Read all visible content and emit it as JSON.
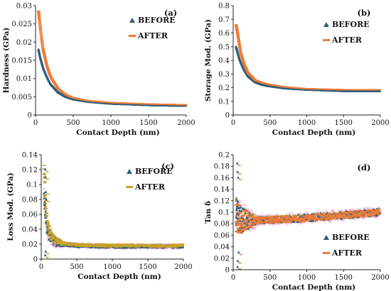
{
  "colors": {
    "before": "#2a5f7c",
    "after": "#f27a36",
    "after_c": "#c9a22a",
    "pink": "#ff9fd6",
    "green": "#8fc63d",
    "axis": "#222222"
  },
  "chart_data": [
    {
      "type": "scatter",
      "panel_label": "(a)",
      "title": "",
      "xlabel": "Contact Depth (nm)",
      "ylabel": "Hardness (GPa)",
      "xlim": [
        0,
        2000
      ],
      "ylim": [
        0,
        0.03
      ],
      "x_ticks": [
        "0",
        "500",
        "1000",
        "1500",
        "2000"
      ],
      "y_ticks": [
        "0",
        "0.005",
        "0.01",
        "0.015",
        "0.02",
        "0.025",
        "0.03"
      ],
      "legend": "top-right",
      "series": [
        {
          "name": "BEFORE",
          "marker": "triangle",
          "x": [
            40,
            60,
            80,
            100,
            150,
            200,
            300,
            400,
            500,
            700,
            1000,
            1500,
            2000
          ],
          "y": [
            0.018,
            0.016,
            0.0145,
            0.013,
            0.0105,
            0.0085,
            0.0062,
            0.005,
            0.0043,
            0.0036,
            0.0031,
            0.0027,
            0.0025
          ]
        },
        {
          "name": "AFTER",
          "marker": "dash",
          "x": [
            40,
            60,
            80,
            100,
            150,
            200,
            300,
            400,
            500,
            700,
            1000,
            1500,
            2000
          ],
          "y": [
            0.0285,
            0.0245,
            0.021,
            0.018,
            0.0135,
            0.0105,
            0.0072,
            0.0056,
            0.0047,
            0.0039,
            0.0034,
            0.003,
            0.0028
          ]
        }
      ]
    },
    {
      "type": "scatter",
      "panel_label": "(b)",
      "title": "",
      "xlabel": "Contact Depth (nm)",
      "ylabel": "Storage Mod. (GPa)",
      "xlim": [
        0,
        2000
      ],
      "ylim": [
        0,
        0.8
      ],
      "x_ticks": [
        "0",
        "500",
        "1000",
        "1500",
        "2000"
      ],
      "y_ticks": [
        "0",
        "0.1",
        "0.2",
        "0.3",
        "0.4",
        "0.5",
        "0.6",
        "0.7",
        "0.8"
      ],
      "legend": "top-right",
      "series": [
        {
          "name": "BEFORE",
          "marker": "triangle",
          "x": [
            40,
            60,
            80,
            100,
            150,
            200,
            300,
            400,
            500,
            700,
            1000,
            1500,
            2000
          ],
          "y": [
            0.5,
            0.46,
            0.42,
            0.39,
            0.33,
            0.285,
            0.24,
            0.22,
            0.21,
            0.195,
            0.185,
            0.175,
            0.175
          ]
        },
        {
          "name": "AFTER",
          "marker": "dash",
          "x": [
            40,
            60,
            80,
            100,
            150,
            200,
            300,
            400,
            500,
            700,
            1000,
            1500,
            2000
          ],
          "y": [
            0.66,
            0.6,
            0.53,
            0.46,
            0.37,
            0.31,
            0.255,
            0.235,
            0.222,
            0.205,
            0.192,
            0.185,
            0.185
          ]
        }
      ]
    },
    {
      "type": "scatter",
      "panel_label": "(c)",
      "title": "",
      "xlabel": "Contact Depth (nm)",
      "ylabel": "Loss Mod. (GPa)",
      "xlim": [
        0,
        2000
      ],
      "ylim": [
        0,
        0.14
      ],
      "x_ticks": [
        "0",
        "500",
        "1000",
        "1500",
        "2000"
      ],
      "y_ticks": [
        "0",
        "0.02",
        "0.04",
        "0.06",
        "0.08",
        "0.1",
        "0.12",
        "0.14"
      ],
      "legend": "top-right",
      "series": [
        {
          "name": "BEFORE",
          "marker": "triangle",
          "x": [
            40,
            60,
            80,
            100,
            150,
            200,
            300,
            500,
            1000,
            1500,
            2000
          ],
          "y": [
            0.085,
            0.06,
            0.045,
            0.035,
            0.027,
            0.023,
            0.02,
            0.018,
            0.017,
            0.017,
            0.017
          ]
        },
        {
          "name": "AFTER",
          "marker": "dash",
          "x": [
            40,
            60,
            80,
            100,
            150,
            200,
            300,
            500,
            1000,
            1500,
            2000
          ],
          "y": [
            0.12,
            0.08,
            0.055,
            0.04,
            0.03,
            0.025,
            0.021,
            0.019,
            0.018,
            0.018,
            0.018
          ]
        }
      ]
    },
    {
      "type": "scatter",
      "panel_label": "(d)",
      "title": "",
      "xlabel": "Contact Depth (nm)",
      "ylabel": "Tan δ",
      "xlim": [
        0,
        2000
      ],
      "ylim": [
        0,
        0.2
      ],
      "x_ticks": [
        "0",
        "500",
        "1000",
        "1500",
        "2000"
      ],
      "y_ticks": [
        "0",
        "0.02",
        "0.04",
        "0.06",
        "0.08",
        "0.1",
        "0.12",
        "0.14",
        "0.16",
        "0.18",
        "0.2"
      ],
      "legend": "bottom-right",
      "series": [
        {
          "name": "BEFORE",
          "marker": "triangle",
          "x": [
            40,
            60,
            80,
            100,
            150,
            200,
            300,
            500,
            700,
            1000,
            1500,
            2000
          ],
          "y": [
            0.1,
            0.095,
            0.09,
            0.088,
            0.087,
            0.086,
            0.086,
            0.087,
            0.088,
            0.09,
            0.095,
            0.1
          ]
        },
        {
          "name": "AFTER",
          "marker": "dash",
          "x": [
            40,
            60,
            80,
            100,
            150,
            200,
            300,
            500,
            700,
            1000,
            1500,
            2000
          ],
          "y": [
            0.095,
            0.092,
            0.089,
            0.087,
            0.086,
            0.086,
            0.086,
            0.087,
            0.088,
            0.09,
            0.095,
            0.1
          ]
        }
      ]
    }
  ]
}
